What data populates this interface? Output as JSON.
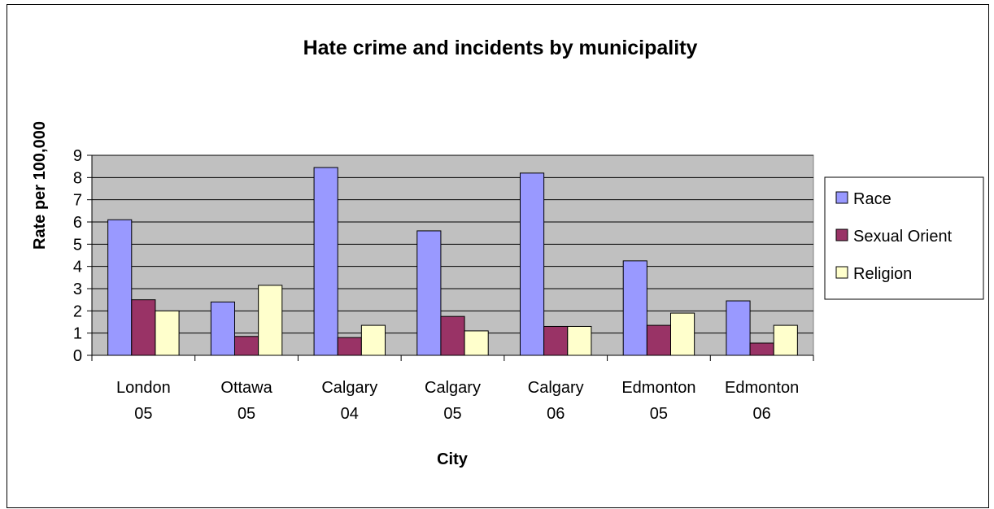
{
  "chart_data": {
    "type": "bar",
    "title": "Hate crime and incidents by municipality",
    "xlabel": "City",
    "ylabel": "Rate per 100,000",
    "ylim": [
      0,
      9
    ],
    "yticks": [
      0,
      1,
      2,
      3,
      4,
      5,
      6,
      7,
      8,
      9
    ],
    "grid": true,
    "legend_position": "right",
    "categories": [
      [
        "London",
        "05"
      ],
      [
        "Ottawa",
        "05"
      ],
      [
        "Calgary",
        "04"
      ],
      [
        "Calgary",
        "05"
      ],
      [
        "Calgary",
        "06"
      ],
      [
        "Edmonton",
        "05"
      ],
      [
        "Edmonton",
        "06"
      ]
    ],
    "series": [
      {
        "name": "Race",
        "color": "#9999ff",
        "values": [
          6.1,
          2.4,
          8.45,
          5.6,
          8.2,
          4.25,
          2.45
        ]
      },
      {
        "name": "Sexual Orient",
        "color": "#993366",
        "values": [
          2.5,
          0.85,
          0.8,
          1.75,
          1.3,
          1.35,
          0.55
        ]
      },
      {
        "name": "Religion",
        "color": "#ffffcc",
        "values": [
          2.0,
          3.15,
          1.35,
          1.1,
          1.3,
          1.9,
          1.35
        ]
      }
    ],
    "plot_background": "#c0c0c0"
  }
}
